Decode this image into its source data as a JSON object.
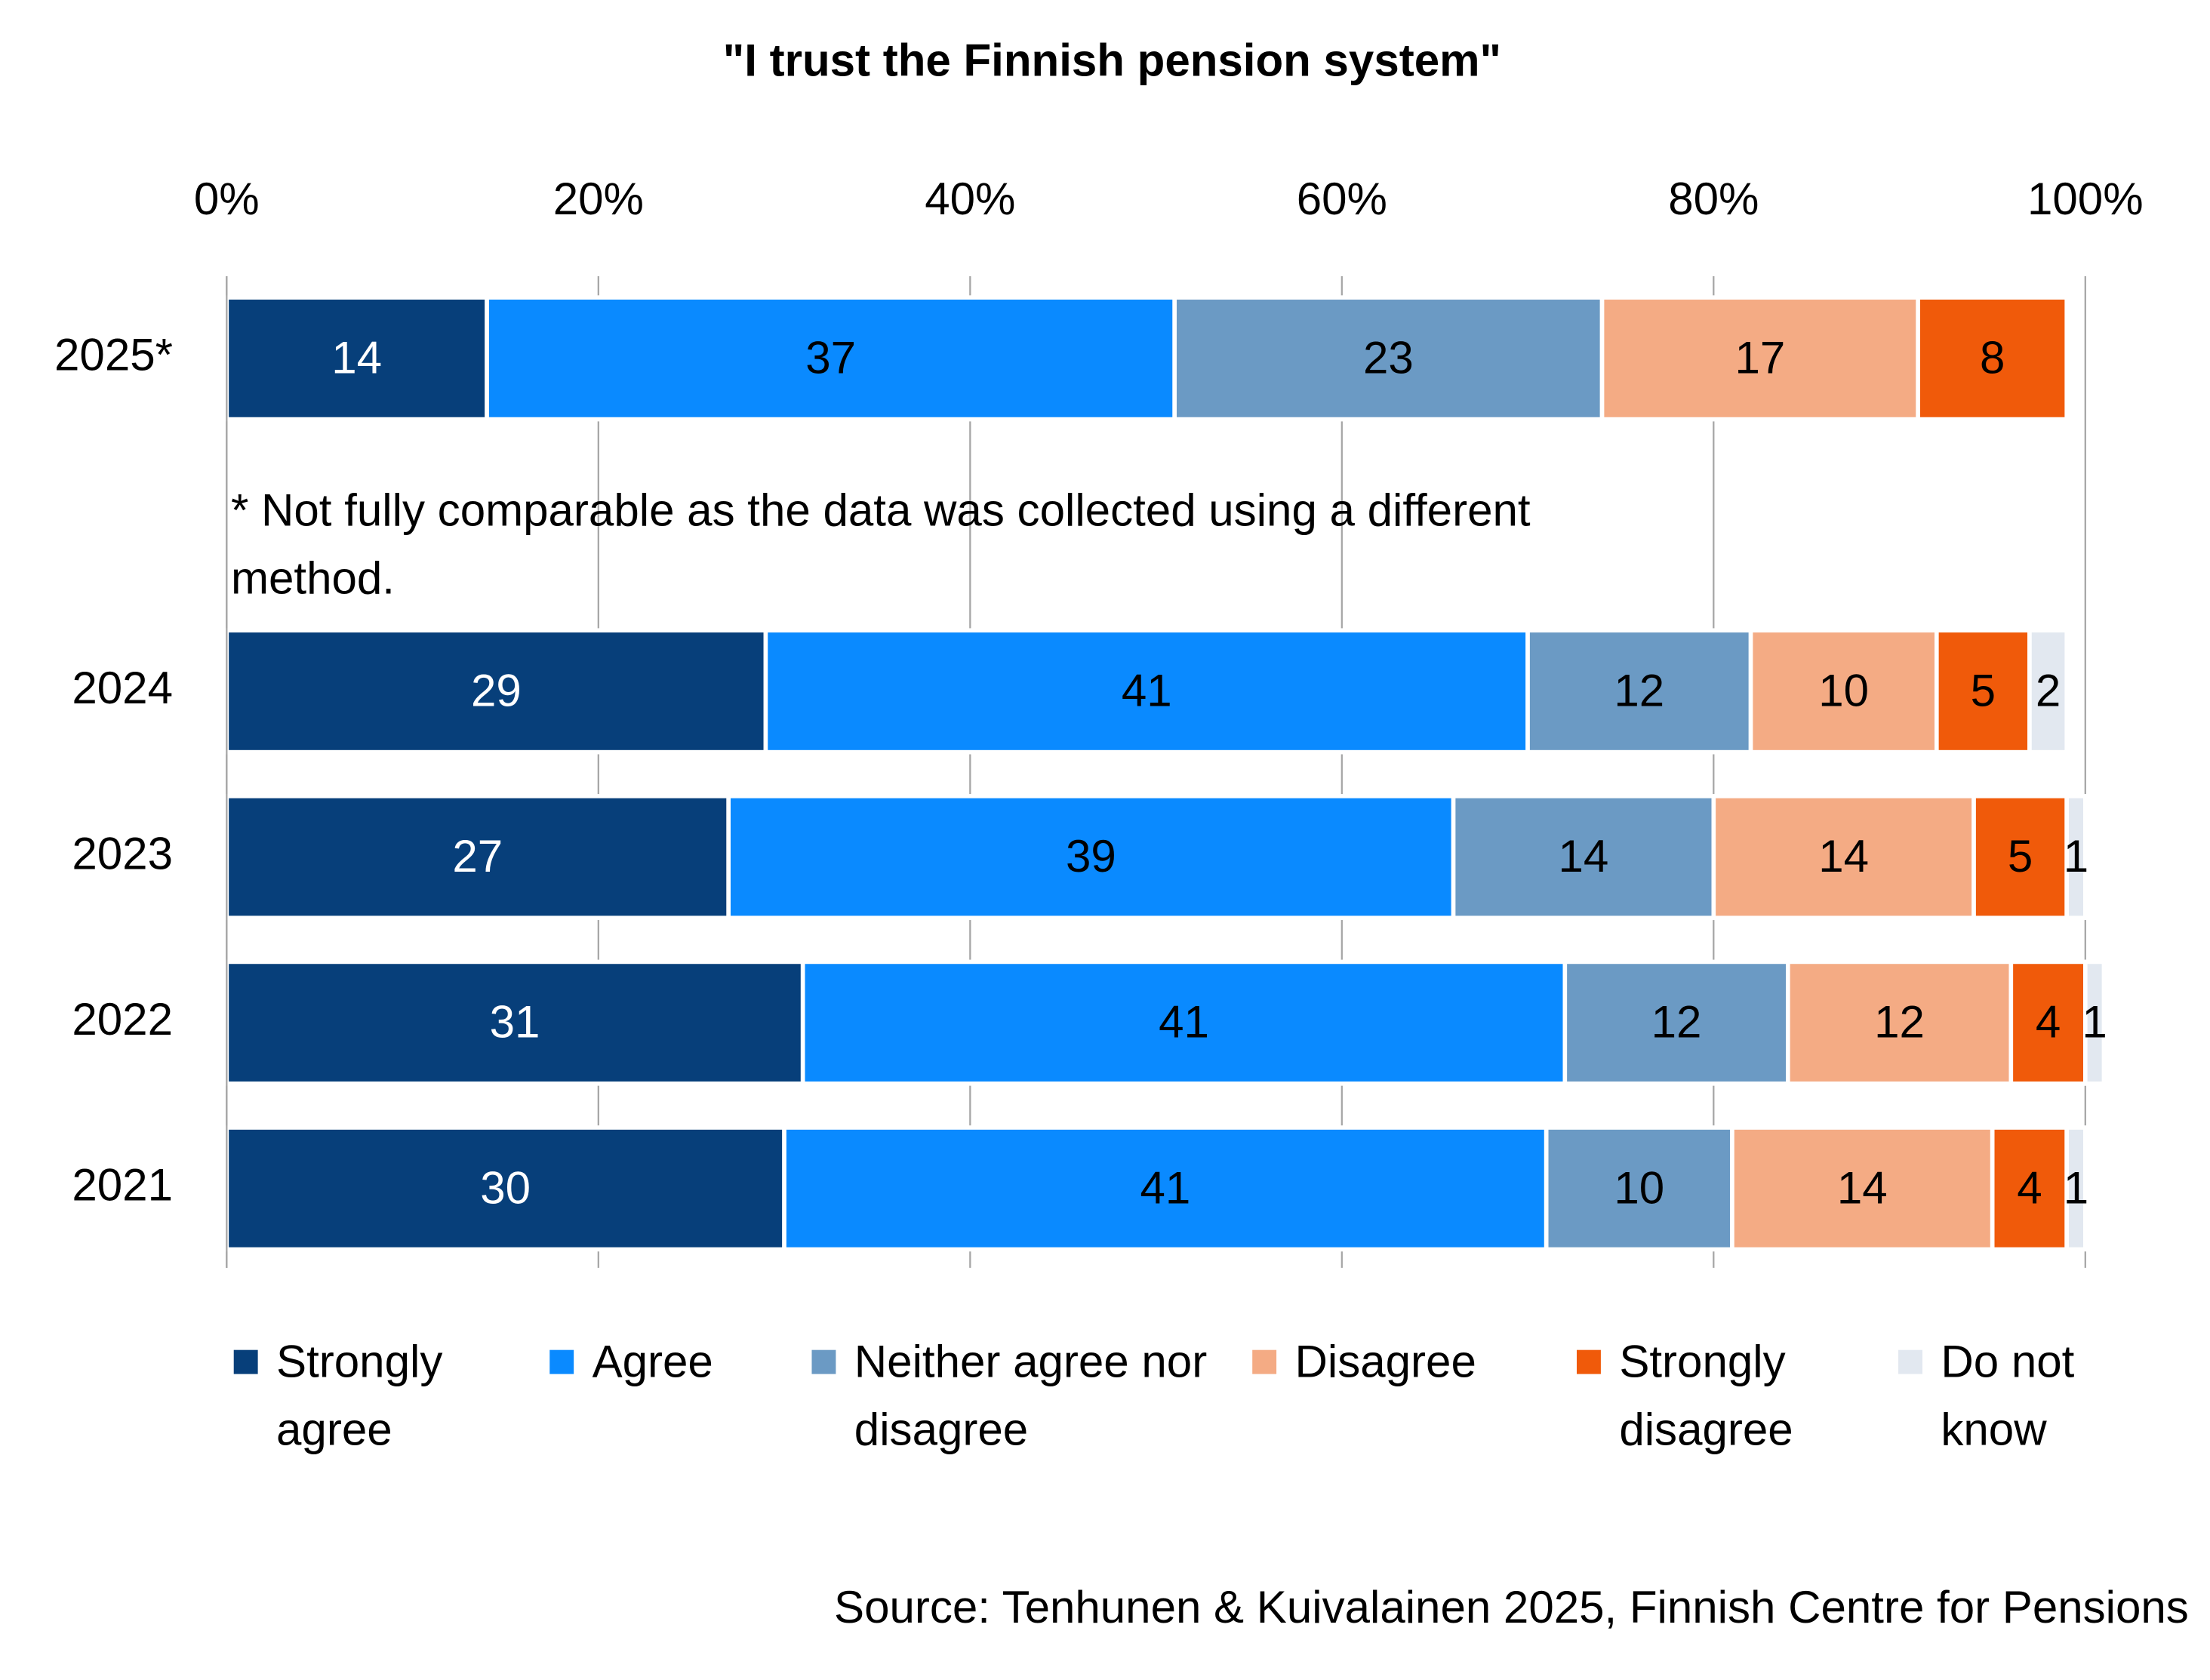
{
  "chart_data": {
    "type": "stacked-bar-horizontal",
    "title": "\"I trust the Finnish pension system\"",
    "annotation": "* Not fully comparable as the data was collected using a different method.",
    "source": "Source: Tenhunen & Kuivalainen 2025, Finnish Centre for Pensions",
    "categories": [
      "2025*",
      "2024",
      "2023",
      "2022",
      "2021"
    ],
    "series": [
      {
        "name": "Strongly agree",
        "color": "#073f7a",
        "values": [
          14,
          29,
          27,
          31,
          30
        ]
      },
      {
        "name": "Agree",
        "color": "#0a8aff",
        "values": [
          37,
          41,
          39,
          41,
          41
        ]
      },
      {
        "name": "Neither agree nor disagree",
        "color": "#6b9ac4",
        "values": [
          23,
          12,
          14,
          12,
          10
        ]
      },
      {
        "name": "Disagree",
        "color": "#f4ab84",
        "values": [
          17,
          10,
          14,
          12,
          14
        ]
      },
      {
        "name": "Strongly disagree",
        "color": "#f05a0a",
        "values": [
          8,
          5,
          5,
          4,
          4
        ]
      },
      {
        "name": "Do not know",
        "color": "#e2e8f0",
        "values": [
          null,
          2,
          1,
          1,
          1
        ]
      }
    ],
    "xlim": [
      0,
      100
    ],
    "xticks": [
      {
        "value": 0,
        "label": "0%"
      },
      {
        "value": 20,
        "label": "20%"
      },
      {
        "value": 40,
        "label": "40%"
      },
      {
        "value": 60,
        "label": "60%"
      },
      {
        "value": 80,
        "label": "80%"
      },
      {
        "value": 100,
        "label": "100%"
      }
    ],
    "grid": true,
    "legend": "bottom"
  }
}
